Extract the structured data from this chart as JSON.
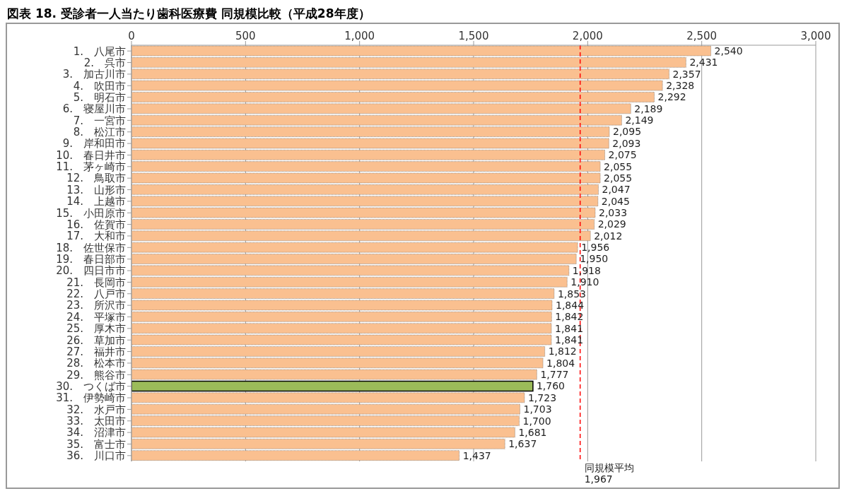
{
  "chart_data": {
    "type": "bar",
    "orientation": "horizontal",
    "title": "図表 18. 受診者一人当たり歯科医療費 同規模比較（平成28年度）",
    "categories": [
      "1.　八尾市",
      "2.　呉市",
      "3.　加古川市",
      "4.　吹田市",
      "5.　明石市",
      "6.　寝屋川市",
      "7.　一宮市",
      "8.　松江市",
      "9.　岸和田市",
      "10.　春日井市",
      "11.　茅ヶ崎市",
      "12.　鳥取市",
      "13.　山形市",
      "14.　上越市",
      "15.　小田原市",
      "16.　佐賀市",
      "17.　大和市",
      "18.　佐世保市",
      "19.　春日部市",
      "20.　四日市市",
      "21.　長岡市",
      "22.　八戸市",
      "23.　所沢市",
      "24.　平塚市",
      "25.　厚木市",
      "26.　草加市",
      "27.　福井市",
      "28.　松本市",
      "29.　熊谷市",
      "30.　つくば市",
      "31.　伊勢崎市",
      "32.　水戸市",
      "33.　太田市",
      "34.　沼津市",
      "35.　富士市",
      "36.　川口市"
    ],
    "values": [
      2540,
      2431,
      2357,
      2328,
      2292,
      2189,
      2149,
      2095,
      2093,
      2075,
      2055,
      2055,
      2047,
      2045,
      2033,
      2029,
      2012,
      1956,
      1950,
      1918,
      1910,
      1853,
      1844,
      1842,
      1841,
      1841,
      1812,
      1804,
      1777,
      1760,
      1723,
      1703,
      1700,
      1681,
      1637,
      1437
    ],
    "colors": [
      "#fac090",
      "#fac090",
      "#fac090",
      "#fac090",
      "#fac090",
      "#fac090",
      "#fac090",
      "#fac090",
      "#fac090",
      "#fac090",
      "#fac090",
      "#fac090",
      "#fac090",
      "#fac090",
      "#fac090",
      "#fac090",
      "#fac090",
      "#fac090",
      "#fac090",
      "#fac090",
      "#fac090",
      "#fac090",
      "#fac090",
      "#fac090",
      "#fac090",
      "#fac090",
      "#fac090",
      "#fac090",
      "#fac090",
      "#9bbb59",
      "#fac090",
      "#fac090",
      "#fac090",
      "#fac090",
      "#fac090",
      "#fac090"
    ],
    "value_labels": [
      "2,540",
      "2,431",
      "2,357",
      "2,328",
      "2,292",
      "2,189",
      "2,149",
      "2,095",
      "2,093",
      "2,075",
      "2,055",
      "2,055",
      "2,047",
      "2,045",
      "2,033",
      "2,029",
      "2,012",
      "1,956",
      "1,950",
      "1,918",
      "1,910",
      "1,853",
      "1,844",
      "1,842",
      "1,841",
      "1,841",
      "1,812",
      "1,804",
      "1,777",
      "1,760",
      "1,723",
      "1,703",
      "1,700",
      "1,681",
      "1,637",
      "1,437"
    ],
    "xlim": [
      0,
      3000
    ],
    "xticks": [
      0,
      500,
      {
        "value": 1000,
        "label": "1,000"
      },
      {
        "value": 1500,
        "label": "1,500"
      },
      {
        "value": 2000,
        "label": "2,000"
      },
      {
        "value": 2500,
        "label": "2,500"
      },
      {
        "value": 3000,
        "label": "3,000"
      }
    ],
    "grid": "x",
    "ref_lines": [
      {
        "axis": "x",
        "value": 1967,
        "label": "同規模平均 1,967",
        "color": "#ff0000",
        "line_style": "dashed"
      }
    ]
  }
}
